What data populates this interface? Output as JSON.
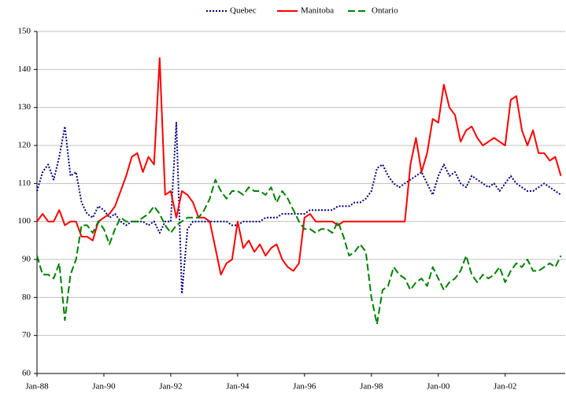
{
  "chart_data": {
    "type": "line",
    "categories": [
      "Jan-88",
      null,
      null,
      null,
      null,
      null,
      null,
      null,
      null,
      null,
      null,
      null,
      "Jan-90",
      null,
      null,
      null,
      null,
      null,
      null,
      null,
      null,
      null,
      null,
      null,
      "Jan-92",
      null,
      null,
      null,
      null,
      null,
      null,
      null,
      null,
      null,
      null,
      null,
      "Jan-94",
      null,
      null,
      null,
      null,
      null,
      null,
      null,
      null,
      null,
      null,
      null,
      "Jan-96",
      null,
      null,
      null,
      null,
      null,
      null,
      null,
      null,
      null,
      null,
      null,
      "Jan-98",
      null,
      null,
      null,
      null,
      null,
      null,
      null,
      null,
      null,
      null,
      null,
      "Jan-00",
      null,
      null,
      null,
      null,
      null,
      null,
      null,
      null,
      null,
      null,
      null,
      "Jan-02",
      null,
      null,
      null,
      null,
      null,
      null,
      null,
      null,
      null,
      null
    ],
    "series": [
      {
        "name": "Quebec",
        "color": "#000080",
        "dash": "dotted",
        "values": [
          108,
          113,
          115,
          111,
          117,
          125,
          112,
          113,
          105,
          102,
          101,
          104,
          103,
          101,
          102,
          100,
          99,
          100,
          100,
          100,
          99,
          100,
          97,
          100,
          100,
          126,
          81,
          98,
          100,
          100,
          100,
          100,
          100,
          100,
          100,
          99,
          99,
          100,
          100,
          100,
          100,
          101,
          101,
          101,
          102,
          102,
          102,
          102,
          102,
          103,
          103,
          103,
          103,
          103,
          104,
          104,
          104,
          105,
          105,
          106,
          108,
          114,
          115,
          112,
          110,
          109,
          110,
          111,
          112,
          113,
          110,
          107,
          112,
          115,
          112,
          113,
          110,
          109,
          112,
          111,
          110,
          109,
          110,
          108,
          110,
          112,
          110,
          109,
          108,
          108,
          109,
          110,
          109,
          108,
          107
        ]
      },
      {
        "name": "Manitoba",
        "color": "#ff0000",
        "dash": "solid",
        "values": [
          100,
          102,
          100,
          100,
          103,
          99,
          100,
          100,
          96,
          96,
          95,
          100,
          101,
          102,
          104,
          108,
          112,
          117,
          118,
          113,
          117,
          115,
          143,
          107,
          108,
          101,
          108,
          107,
          105,
          101,
          101,
          100,
          93,
          86,
          89,
          90,
          100,
          93,
          95,
          92,
          94,
          91,
          93,
          94,
          90,
          88,
          87,
          89,
          101,
          102,
          100,
          100,
          100,
          100,
          99,
          100,
          100,
          100,
          100,
          100,
          100,
          100,
          100,
          100,
          100,
          100,
          100,
          115,
          122,
          113,
          118,
          127,
          126,
          136,
          130,
          128,
          121,
          124,
          125,
          122,
          120,
          121,
          122,
          121,
          120,
          132,
          133,
          124,
          120,
          124,
          118,
          118,
          116,
          117,
          112
        ]
      },
      {
        "name": "Ontario",
        "color": "#008000",
        "dash": "dashed",
        "values": [
          91,
          86,
          86,
          85,
          89,
          74,
          86,
          90,
          99,
          99,
          97,
          100,
          98,
          94,
          98,
          101,
          100,
          100,
          100,
          101,
          102,
          104,
          102,
          99,
          97,
          99,
          100,
          101,
          101,
          101,
          103,
          106,
          111,
          108,
          106,
          108,
          108,
          107,
          109,
          108,
          108,
          107,
          109,
          105,
          108,
          106,
          103,
          100,
          98,
          98,
          97,
          98,
          98,
          97,
          100,
          96,
          91,
          92,
          94,
          92,
          80,
          73,
          82,
          83,
          88,
          86,
          85,
          82,
          84,
          85,
          83,
          88,
          85,
          82,
          84,
          85,
          87,
          91,
          86,
          84,
          86,
          85,
          86,
          88,
          84,
          87,
          89,
          88,
          90,
          87,
          87,
          88,
          89,
          88,
          91
        ]
      }
    ],
    "ylim": [
      60,
      150
    ],
    "yticks": [
      60,
      70,
      80,
      90,
      100,
      110,
      120,
      130,
      140,
      150
    ],
    "grid": true,
    "legend": "top"
  }
}
